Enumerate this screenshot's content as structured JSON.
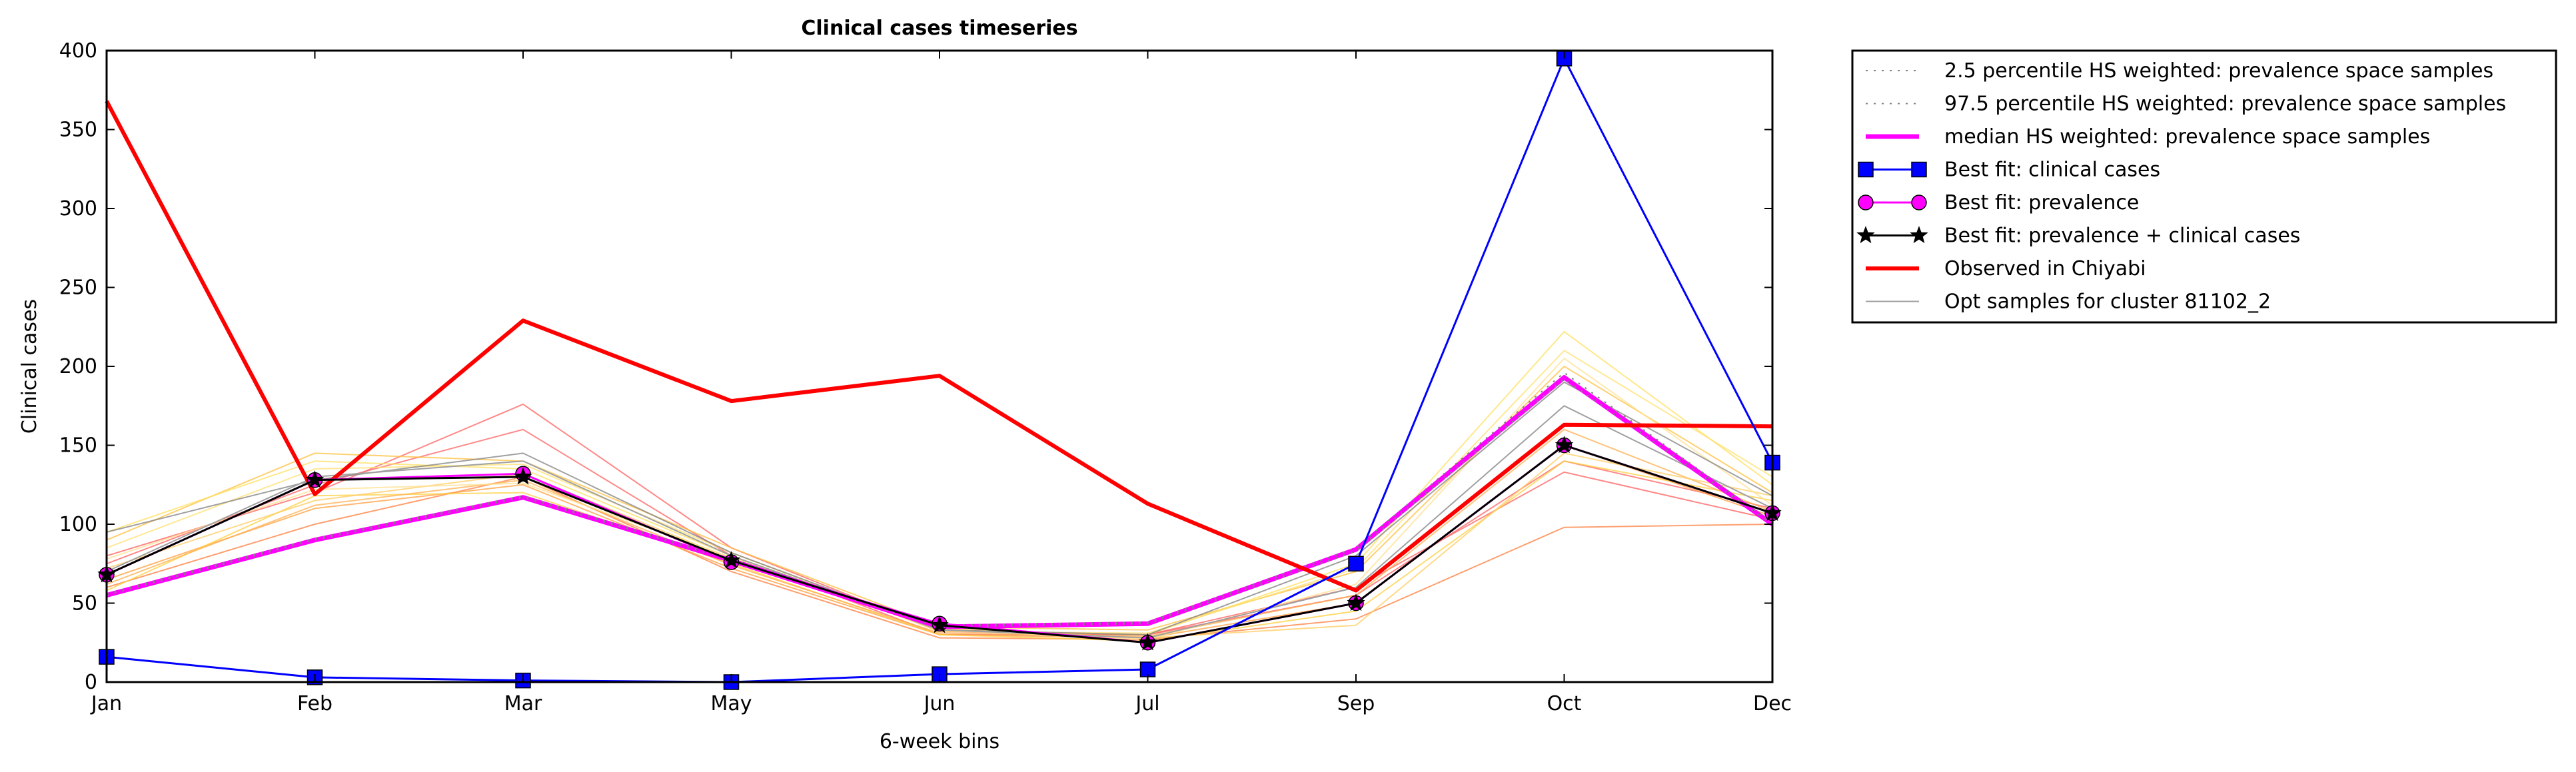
{
  "chart_data": {
    "type": "line",
    "title": "Clinical cases timeseries",
    "xlabel": "6-week bins",
    "ylabel": "Clinical cases",
    "categories": [
      "Jan",
      "Feb",
      "Mar",
      "May",
      "Jun",
      "Jul",
      "Sep",
      "Oct",
      "Dec"
    ],
    "ylim": [
      0,
      400
    ],
    "yticks": [
      "0",
      "50",
      "100",
      "150",
      "200",
      "250",
      "300",
      "350",
      "400"
    ],
    "grid": false,
    "legend_position": "outside-right-top",
    "series": [
      {
        "name": "2.5 percentile HS weighted: prevalence space samples",
        "values": [
          55,
          90,
          117,
          77,
          35,
          37,
          83,
          192,
          100
        ],
        "color": "#808080",
        "style": "dotted",
        "marker": "none"
      },
      {
        "name": "97.5 percentile HS weighted: prevalence space samples",
        "values": [
          56,
          91,
          118,
          78,
          36,
          38,
          85,
          196,
          101
        ],
        "color": "#808080",
        "style": "dotted",
        "marker": "none"
      },
      {
        "name": "median HS weighted: prevalence space samples",
        "values": [
          55,
          90,
          117,
          77,
          35,
          37,
          84,
          193,
          100
        ],
        "color": "#ff00ff",
        "style": "solid",
        "marker": "none"
      },
      {
        "name": "Best fit: clinical cases",
        "values": [
          16,
          3,
          1,
          0,
          5,
          8,
          75,
          395,
          139
        ],
        "color": "#0000ff",
        "style": "solid",
        "marker": "square"
      },
      {
        "name": "Best fit: prevalence",
        "values": [
          68,
          128,
          132,
          76,
          37,
          25,
          50,
          150,
          107
        ],
        "color": "#ff00ff",
        "style": "solid",
        "marker": "circle"
      },
      {
        "name": "Best fit: prevalence + clinical cases",
        "values": [
          68,
          128,
          130,
          77,
          36,
          25,
          50,
          150,
          107
        ],
        "color": "#000000",
        "style": "solid",
        "marker": "star"
      },
      {
        "name": "Observed in Chiyabi",
        "values": [
          368,
          119,
          229,
          178,
          194,
          113,
          58,
          163,
          162
        ],
        "color": "#ff0000",
        "style": "solid",
        "marker": "none"
      },
      {
        "name": "Opt samples for cluster 81102_2",
        "values": [
          70,
          130,
          140,
          80,
          33,
          28,
          60,
          175,
          110
        ],
        "color": "#a0a0a0",
        "style": "solid",
        "marker": "none"
      }
    ],
    "sample_lines": [
      {
        "color": "#ff6060",
        "values": [
          80,
          120,
          176,
          85,
          32,
          30,
          60,
          133,
          103
        ]
      },
      {
        "color": "#ff6060",
        "values": [
          75,
          125,
          160,
          80,
          30,
          30,
          55,
          140,
          110
        ]
      },
      {
        "color": "#ff8040",
        "values": [
          60,
          100,
          130,
          70,
          28,
          27,
          40,
          98,
          100
        ]
      },
      {
        "color": "#ffa040",
        "values": [
          65,
          110,
          125,
          72,
          30,
          28,
          50,
          150,
          105
        ]
      },
      {
        "color": "#ffc040",
        "values": [
          90,
          145,
          140,
          85,
          35,
          33,
          70,
          200,
          120
        ]
      },
      {
        "color": "#ffe060",
        "values": [
          95,
          140,
          135,
          80,
          33,
          30,
          75,
          222,
          125
        ]
      },
      {
        "color": "#ffe070",
        "values": [
          85,
          135,
          138,
          82,
          32,
          31,
          72,
          210,
          130
        ]
      },
      {
        "color": "#ffd040",
        "values": [
          58,
          118,
          120,
          75,
          30,
          26,
          45,
          140,
          115
        ]
      },
      {
        "color": "#ffb050",
        "values": [
          62,
          112,
          128,
          74,
          31,
          29,
          55,
          160,
          108
        ]
      },
      {
        "color": "#ffcc60",
        "values": [
          72,
          115,
          132,
          78,
          34,
          28,
          36,
          145,
          118
        ]
      },
      {
        "color": "#ffe090",
        "values": [
          78,
          122,
          126,
          79,
          33,
          27,
          62,
          205,
          112
        ]
      },
      {
        "color": "#808080",
        "values": [
          95,
          128,
          145,
          82,
          33,
          30,
          80,
          190,
          118
        ]
      }
    ]
  }
}
